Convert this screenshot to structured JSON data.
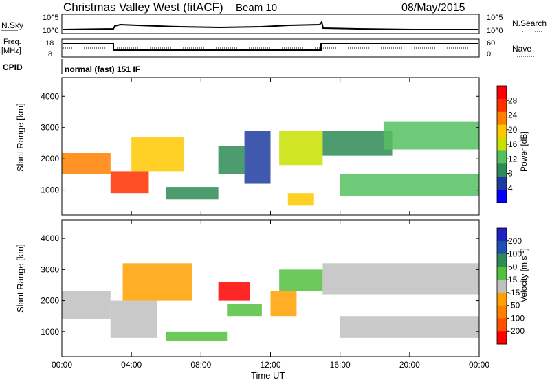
{
  "header": {
    "station": "Christmas Valley West (fitACF)",
    "beam": "Beam 10",
    "date": "08/May/2015"
  },
  "side_labels": {
    "nsky": "N.Sky",
    "nsearch": "N.Search",
    "freq_line1": "Freq.",
    "freq_line2": "[MHz]",
    "nave": "Nave",
    "cpid": "CPID",
    "cpid_value": "normal (fast) 151 IF"
  },
  "small_panels": {
    "noise_left_ticks": [
      "10^5",
      "10^0"
    ],
    "noise_right_ticks": [
      "10^5",
      "10^0"
    ],
    "freq_left_ticks": [
      "18",
      "8"
    ],
    "freq_right_ticks": [
      "60",
      "0"
    ]
  },
  "colors": {
    "power_scale": [
      "#0000ff",
      "#1e3ca0",
      "#2e8b57",
      "#55c060",
      "#c8e000",
      "#ffc800",
      "#ff8000",
      "#ff3000",
      "#ff0000"
    ],
    "velocity_scale": [
      "#2020c0",
      "#2050b0",
      "#2e8b57",
      "#55c040",
      "#c0c0c0",
      "#ffa000",
      "#ff8000",
      "#ff5000",
      "#ff0000"
    ]
  },
  "chart_data": [
    {
      "type": "heatmap",
      "name": "power",
      "xlabel": "",
      "ylabel": "Slant Range [km]",
      "x_ticks": [
        "00:00",
        "04:00",
        "08:00",
        "12:00",
        "16:00",
        "20:00",
        "00:00"
      ],
      "x_range_hours": [
        0,
        24
      ],
      "y_ticks": [
        1000,
        2000,
        3000,
        4000
      ],
      "y_range_km": [
        200,
        4600
      ],
      "colorbar_label": "Power [dB]",
      "colorbar_ticks": [
        4,
        8,
        12,
        16,
        20,
        24,
        28
      ],
      "colorbar_range": [
        0,
        32
      ],
      "echo_bands": [
        {
          "t0": 0.0,
          "t1": 2.8,
          "r0": 1500,
          "r1": 2200,
          "value": 22
        },
        {
          "t0": 2.8,
          "t1": 5.0,
          "r0": 900,
          "r1": 1600,
          "value": 28
        },
        {
          "t0": 4.0,
          "t1": 7.0,
          "r0": 1600,
          "r1": 2700,
          "value": 18
        },
        {
          "t0": 6.0,
          "t1": 9.0,
          "r0": 700,
          "r1": 1100,
          "value": 8
        },
        {
          "t0": 9.0,
          "t1": 10.5,
          "r0": 1500,
          "r1": 2400,
          "value": 8
        },
        {
          "t0": 10.5,
          "t1": 12.0,
          "r0": 1200,
          "r1": 2900,
          "value": 6
        },
        {
          "t0": 12.5,
          "t1": 15.0,
          "r0": 1800,
          "r1": 2900,
          "value": 16
        },
        {
          "t0": 13.0,
          "t1": 14.5,
          "r0": 500,
          "r1": 900,
          "value": 20
        },
        {
          "t0": 15.0,
          "t1": 19.0,
          "r0": 2100,
          "r1": 2900,
          "value": 10
        },
        {
          "t0": 16.0,
          "t1": 24.0,
          "r0": 800,
          "r1": 1500,
          "value": 12
        },
        {
          "t0": 18.5,
          "t1": 24.0,
          "r0": 2300,
          "r1": 3200,
          "value": 14
        }
      ]
    },
    {
      "type": "heatmap",
      "name": "velocity",
      "xlabel": "Time UT",
      "ylabel": "Slant Range [km]",
      "x_ticks": [
        "00:00",
        "04:00",
        "08:00",
        "12:00",
        "16:00",
        "20:00",
        "00:00"
      ],
      "x_range_hours": [
        0,
        24
      ],
      "y_ticks": [
        1000,
        2000,
        3000,
        4000
      ],
      "y_range_km": [
        200,
        4600
      ],
      "colorbar_label": "Velocity [m s^-1]",
      "colorbar_ticks": [
        "200",
        "100",
        "50",
        "15",
        "-15",
        "-50",
        "-100",
        "-200"
      ],
      "colorbar_range": [
        -250,
        250
      ],
      "echo_bands": [
        {
          "t0": 0.0,
          "t1": 2.8,
          "r0": 1400,
          "r1": 2300,
          "value": 0
        },
        {
          "t0": 2.8,
          "t1": 5.5,
          "r0": 800,
          "r1": 2000,
          "value": 0
        },
        {
          "t0": 3.5,
          "t1": 7.5,
          "r0": 2000,
          "r1": 3200,
          "value": -60
        },
        {
          "t0": 6.0,
          "t1": 9.5,
          "r0": 700,
          "r1": 1000,
          "value": 60
        },
        {
          "t0": 9.0,
          "t1": 10.8,
          "r0": 2000,
          "r1": 2600,
          "value": -220
        },
        {
          "t0": 9.5,
          "t1": 11.5,
          "r0": 1500,
          "r1": 1900,
          "value": 60
        },
        {
          "t0": 12.0,
          "t1": 13.5,
          "r0": 1500,
          "r1": 2300,
          "value": -80
        },
        {
          "t0": 12.5,
          "t1": 15.0,
          "r0": 2300,
          "r1": 3000,
          "value": 60
        },
        {
          "t0": 15.0,
          "t1": 24.0,
          "r0": 2200,
          "r1": 3200,
          "value": 0
        },
        {
          "t0": 16.0,
          "t1": 24.0,
          "r0": 800,
          "r1": 1500,
          "value": 0
        }
      ]
    }
  ]
}
